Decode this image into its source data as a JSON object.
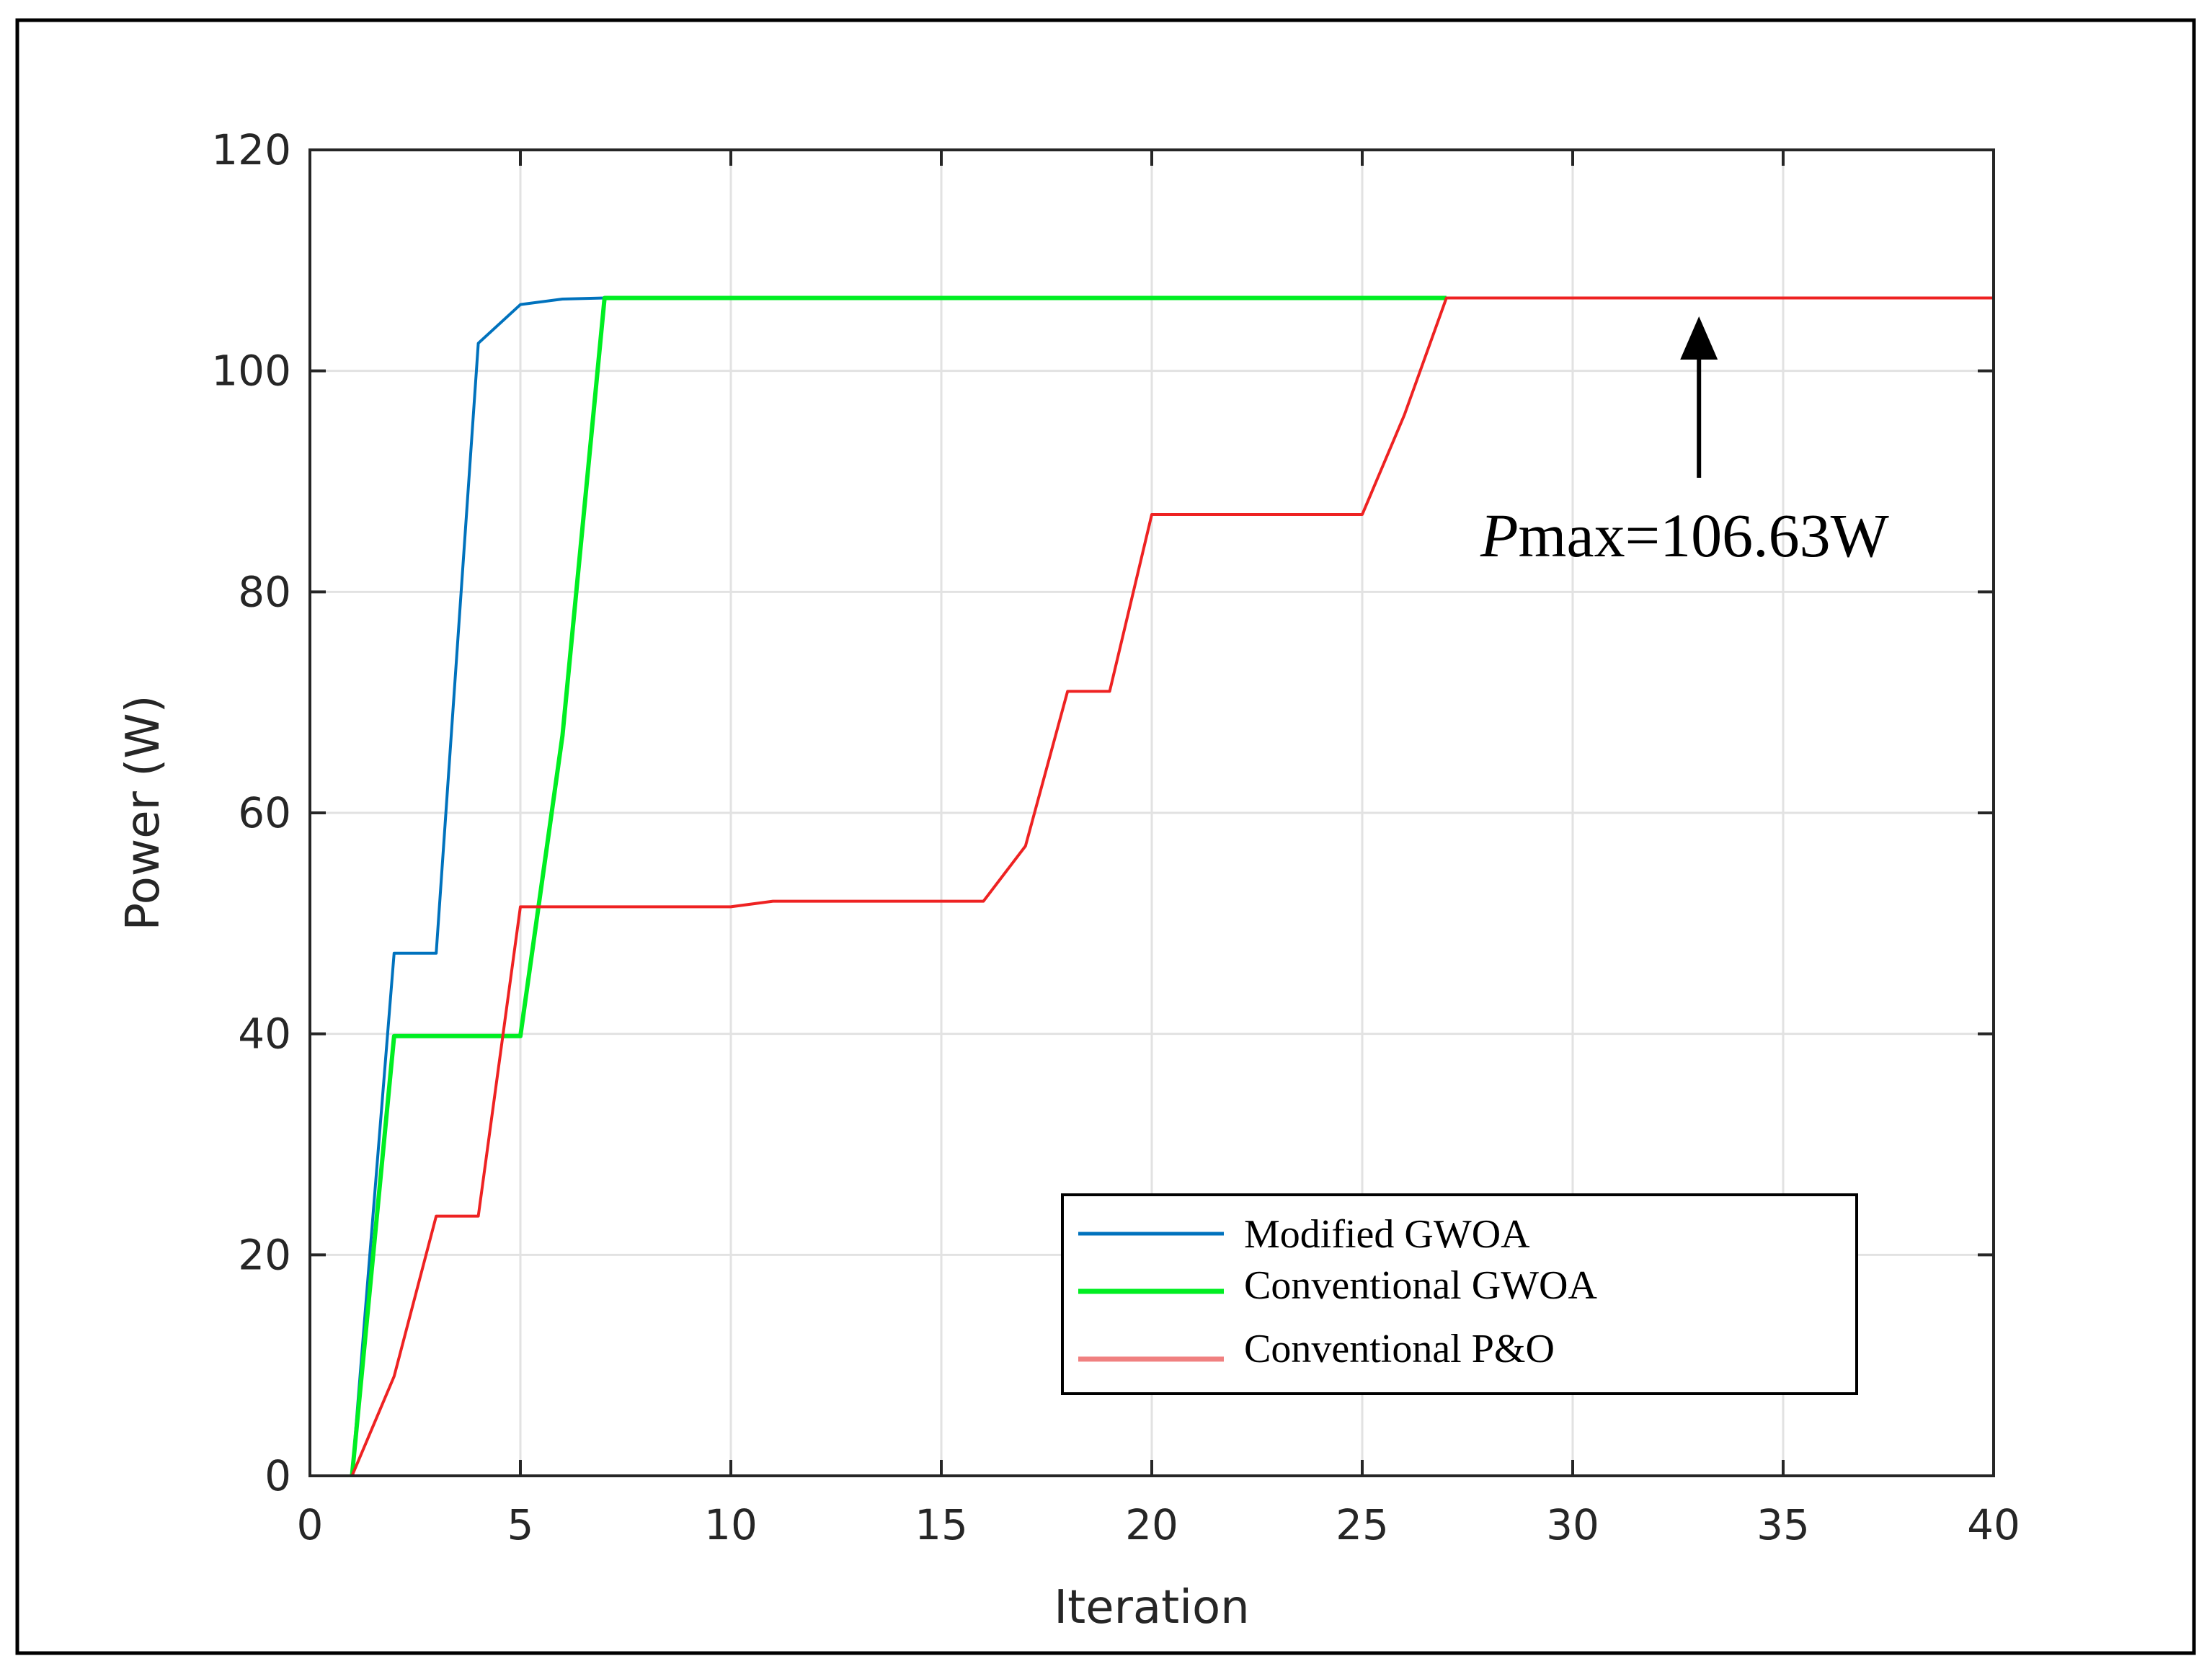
{
  "chart_data": {
    "type": "line",
    "title": "",
    "xlabel": "Iteration",
    "ylabel": "Power (W)",
    "xlim": [
      0,
      40
    ],
    "ylim": [
      0,
      120
    ],
    "xticks": [
      0,
      5,
      10,
      15,
      20,
      25,
      30,
      35,
      40
    ],
    "yticks": [
      0,
      20,
      40,
      60,
      80,
      100,
      120
    ],
    "grid": true,
    "legend_position": "bottom-right",
    "series": [
      {
        "name": "Modified GWOA",
        "color": "#0072BD",
        "x": [
          1,
          2,
          3,
          4,
          5,
          6,
          7,
          8,
          9,
          10,
          15,
          20,
          25,
          29
        ],
        "y": [
          0,
          47.3,
          47.3,
          102.5,
          106.0,
          106.5,
          106.6,
          106.6,
          106.6,
          106.6,
          106.6,
          106.6,
          106.6,
          106.6
        ]
      },
      {
        "name": "Conventional GWOA",
        "color": "#00EE22",
        "x": [
          1,
          2,
          3,
          4,
          5,
          6,
          7,
          8,
          10,
          15,
          20,
          25,
          27
        ],
        "y": [
          0,
          39.8,
          39.8,
          39.8,
          39.8,
          67.0,
          106.6,
          106.6,
          106.6,
          106.6,
          106.6,
          106.6,
          106.6
        ]
      },
      {
        "name": "Conventional P&O",
        "color": "#EE2222",
        "x": [
          1,
          2,
          3,
          4,
          5,
          6,
          10,
          11,
          15,
          16,
          17,
          18,
          19,
          20,
          21,
          25,
          26,
          27,
          28,
          30,
          35,
          40
        ],
        "y": [
          0,
          9.0,
          23.5,
          23.5,
          51.5,
          51.5,
          51.5,
          52.0,
          52.0,
          52.0,
          57.0,
          71.0,
          71.0,
          87.0,
          87.0,
          87.0,
          96.0,
          106.6,
          106.6,
          106.6,
          106.6,
          106.6
        ]
      }
    ],
    "annotation": {
      "text_italic": "P",
      "text_rest": "max=106.63W",
      "arrow_x": 33,
      "arrow_y": 106.63
    }
  }
}
